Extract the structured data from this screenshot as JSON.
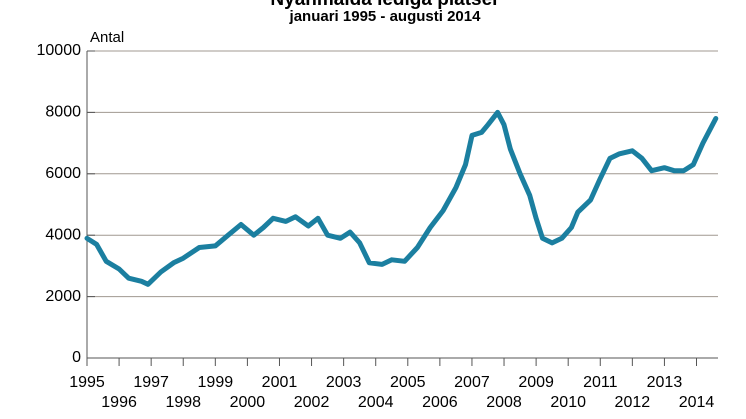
{
  "chart_data": {
    "type": "line",
    "title": "Nyanmälda lediga platser",
    "subtitle": "januari 1995 - augusti 2014",
    "y_label": "Antal",
    "xlim": [
      1995,
      2014.67
    ],
    "xticks": [
      1995,
      1996,
      1997,
      1998,
      1999,
      2000,
      2001,
      2002,
      2003,
      2004,
      2005,
      2006,
      2007,
      2008,
      2009,
      2010,
      2011,
      2012,
      2013,
      2014
    ],
    "ylim": [
      0,
      10000
    ],
    "yticks": [
      0,
      2000,
      4000,
      6000,
      8000,
      10000
    ],
    "grid": true,
    "series": [
      {
        "color": "#1b7fa0",
        "x": [
          1995.0,
          1995.3,
          1995.6,
          1996.0,
          1996.3,
          1996.7,
          1996.9,
          1997.3,
          1997.7,
          1998.0,
          1998.5,
          1999.0,
          1999.4,
          1999.8,
          2000.2,
          2000.5,
          2000.8,
          2001.2,
          2001.5,
          2001.9,
          2002.2,
          2002.5,
          2002.9,
          2003.2,
          2003.5,
          2003.8,
          2004.2,
          2004.5,
          2004.9,
          2005.3,
          2005.7,
          2006.1,
          2006.5,
          2006.8,
          2007.0,
          2007.3,
          2007.5,
          2007.8,
          2008.0,
          2008.2,
          2008.5,
          2008.8,
          2009.0,
          2009.2,
          2009.5,
          2009.8,
          2010.1,
          2010.3,
          2010.7,
          2011.0,
          2011.3,
          2011.6,
          2012.0,
          2012.3,
          2012.6,
          2013.0,
          2013.3,
          2013.6,
          2013.9,
          2014.2,
          2014.6
        ],
        "values": [
          3900,
          3700,
          3150,
          2900,
          2600,
          2500,
          2400,
          2800,
          3100,
          3250,
          3600,
          3650,
          4000,
          4350,
          4000,
          4250,
          4550,
          4450,
          4600,
          4300,
          4550,
          4000,
          3900,
          4100,
          3750,
          3100,
          3050,
          3200,
          3150,
          3600,
          4250,
          4800,
          5550,
          6300,
          7250,
          7350,
          7600,
          8000,
          7600,
          6800,
          6000,
          5300,
          4550,
          3900,
          3750,
          3900,
          4250,
          4750,
          5150,
          5850,
          6500,
          6650,
          6750,
          6500,
          6100,
          6200,
          6100,
          6100,
          6300,
          7000,
          7800
        ]
      }
    ]
  }
}
